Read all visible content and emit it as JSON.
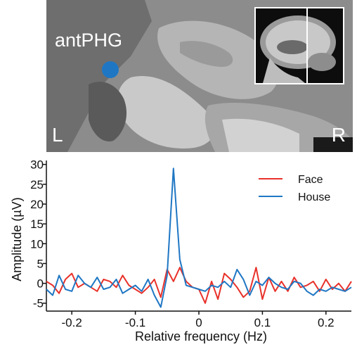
{
  "image_panel": {
    "region_label": "antPHG",
    "left_label": "L",
    "right_label": "R",
    "marker_color": "#1f77c4"
  },
  "chart_data": {
    "type": "line",
    "title": "",
    "xlabel": "Relative frequency (Hz)",
    "ylabel": "Amplitude (µV)",
    "xlim": [
      -0.24,
      0.24
    ],
    "ylim": [
      -7,
      31
    ],
    "xticks": [
      -0.2,
      -0.1,
      0,
      0.1,
      0.2
    ],
    "xtick_labels": [
      "-0.2",
      "-0.1",
      "0",
      "0.1",
      "0.2"
    ],
    "yticks": [
      -5,
      0,
      5,
      10,
      15,
      20,
      25,
      30
    ],
    "ytick_labels": [
      "-5",
      "0",
      "5",
      "10",
      "15",
      "20",
      "25",
      "30"
    ],
    "grid": false,
    "legend_position": "top-right",
    "x": [
      -0.24,
      -0.23,
      -0.22,
      -0.21,
      -0.2,
      -0.19,
      -0.18,
      -0.17,
      -0.16,
      -0.15,
      -0.14,
      -0.13,
      -0.12,
      -0.11,
      -0.1,
      -0.09,
      -0.08,
      -0.07,
      -0.06,
      -0.05,
      -0.04,
      -0.03,
      -0.02,
      -0.01,
      0,
      0.01,
      0.02,
      0.03,
      0.04,
      0.05,
      0.06,
      0.07,
      0.08,
      0.09,
      0.1,
      0.11,
      0.12,
      0.13,
      0.14,
      0.15,
      0.16,
      0.17,
      0.18,
      0.19,
      0.2,
      0.21,
      0.22,
      0.23,
      0.24
    ],
    "series": [
      {
        "name": "Face",
        "color": "#e8312a",
        "values": [
          0.5,
          -0.5,
          -2.5,
          1,
          2.5,
          -1,
          0,
          -1,
          -2,
          1,
          0.5,
          -1,
          2,
          -0.5,
          -1.5,
          -2.5,
          -1,
          1,
          -3.5,
          3.5,
          0.5,
          4,
          0.5,
          -1,
          -1.5,
          -5,
          0.5,
          -4,
          2.5,
          1,
          -1,
          -3.5,
          -2,
          4,
          -4,
          1.5,
          -2,
          0.5,
          -2,
          1.5,
          -1,
          -0.5,
          0.5,
          -2,
          1,
          -1.5,
          0,
          -2,
          0.5
        ]
      },
      {
        "name": "House",
        "color": "#1f77c4",
        "values": [
          -1.5,
          -3,
          2,
          -1.5,
          -2,
          2,
          0,
          -1,
          1.5,
          -1.5,
          -1,
          1,
          -2.5,
          -1.5,
          -0.5,
          -2,
          1,
          -3,
          -6,
          2,
          29,
          6,
          -0.5,
          -1,
          -1.5,
          -2,
          -0.5,
          -1,
          0.5,
          -1,
          3.5,
          1,
          -3,
          0.5,
          -0.5,
          1.5,
          0,
          -1,
          -1.5,
          0.5,
          0,
          -2,
          -3,
          -1.5,
          -2,
          -1,
          -1.5,
          -2,
          -1
        ]
      }
    ]
  }
}
